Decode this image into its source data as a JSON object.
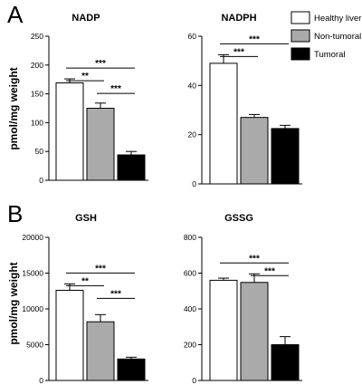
{
  "panels": [
    {
      "letter": "A",
      "ylabel": "pmol/mg weight"
    },
    {
      "letter": "B",
      "ylabel": "pmol/mg weight"
    }
  ],
  "legend": [
    {
      "label": "Healthy liver",
      "color": "#ffffff"
    },
    {
      "label": "Non-tumoral",
      "color": "#aaaaaa"
    },
    {
      "label": "Tumoral",
      "color": "#000000"
    }
  ],
  "chart_data": [
    {
      "type": "bar",
      "title": "NADP",
      "categories": [
        "Healthy liver",
        "Non-tumoral",
        "Tumoral"
      ],
      "values": [
        169,
        125,
        44
      ],
      "errors": [
        7,
        9,
        6
      ],
      "ylim": [
        0,
        250
      ],
      "yticks": [
        "0",
        "50",
        "100",
        "150",
        "200",
        "250"
      ],
      "significance": [
        {
          "from": 0,
          "to": 2,
          "label": "***"
        },
        {
          "from": 0,
          "to": 1,
          "label": "**"
        },
        {
          "from": 1,
          "to": 2,
          "label": "***"
        }
      ]
    },
    {
      "type": "bar",
      "title": "NADPH",
      "categories": [
        "Healthy liver",
        "Non-tumoral",
        "Tumoral"
      ],
      "values": [
        49,
        27,
        22.5
      ],
      "errors": [
        3.5,
        1.2,
        1.3
      ],
      "ylim": [
        0,
        60
      ],
      "yticks": [
        "0",
        "20",
        "40",
        "60"
      ],
      "significance": [
        {
          "from": 0,
          "to": 2,
          "label": "***"
        },
        {
          "from": 0,
          "to": 1,
          "label": "***"
        }
      ]
    },
    {
      "type": "bar",
      "title": "GSH",
      "categories": [
        "Healthy liver",
        "Non-tumoral",
        "Tumoral"
      ],
      "values": [
        12600,
        8200,
        3000
      ],
      "errors": [
        900,
        1000,
        250
      ],
      "ylim": [
        0,
        20000
      ],
      "yticks": [
        "0",
        "5000",
        "10000",
        "15000",
        "20000"
      ],
      "significance": [
        {
          "from": 0,
          "to": 2,
          "label": "***"
        },
        {
          "from": 0,
          "to": 1,
          "label": "**"
        },
        {
          "from": 1,
          "to": 2,
          "label": "***"
        }
      ]
    },
    {
      "type": "bar",
      "title": "GSSG",
      "categories": [
        "Healthy liver",
        "Non-tumoral",
        "Tumoral"
      ],
      "values": [
        560,
        548,
        200
      ],
      "errors": [
        12,
        48,
        45
      ],
      "ylim": [
        0,
        800
      ],
      "yticks": [
        "0",
        "200",
        "400",
        "600",
        "800"
      ],
      "significance": [
        {
          "from": 0,
          "to": 2,
          "label": "***"
        },
        {
          "from": 1,
          "to": 2,
          "label": "***"
        }
      ]
    }
  ]
}
